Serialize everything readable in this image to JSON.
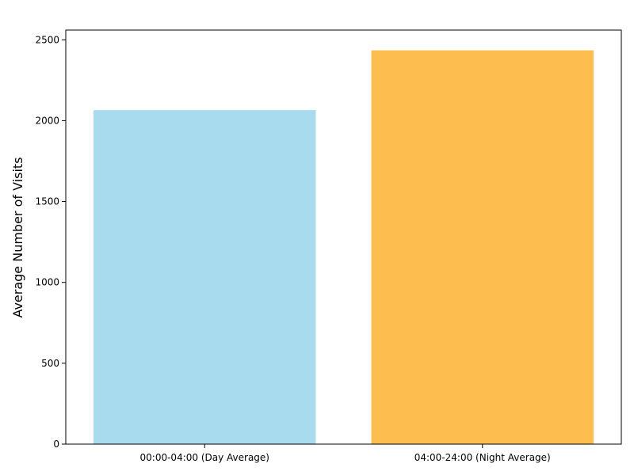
{
  "chart_data": {
    "type": "bar",
    "title": "",
    "xlabel": "",
    "ylabel": "Average Number of Visits",
    "categories": [
      "00:00-04:00 (Day Average)",
      "04:00-24:00 (Night Average)"
    ],
    "values": [
      2065,
      2435
    ],
    "colors": [
      "#a8dbee",
      "#fdbe4f"
    ],
    "ylim": [
      0,
      2560
    ],
    "yticks": [
      0,
      500,
      1000,
      1500,
      2000,
      2500
    ],
    "grid": false,
    "legend": "none"
  }
}
